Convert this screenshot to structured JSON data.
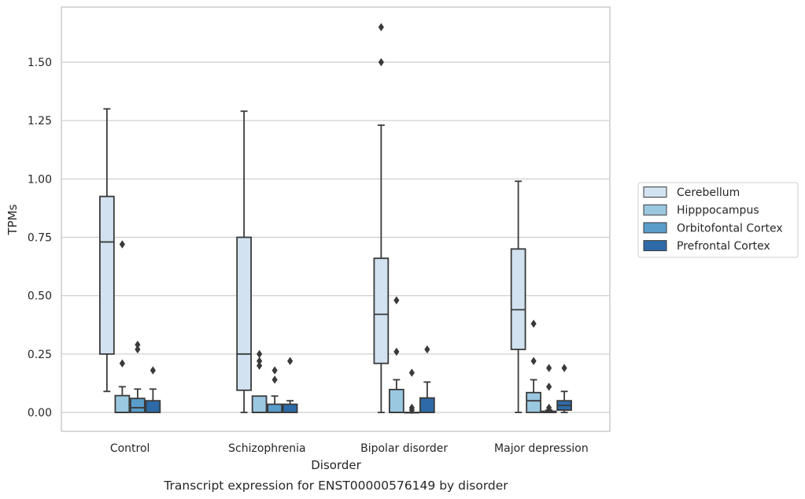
{
  "caption": "Transcript expression for ENST00000576149 by disorder",
  "chart_data": {
    "type": "box",
    "title": "",
    "xlabel": "Disorder",
    "ylabel": "TPMs",
    "ylim": [
      -0.08,
      1.74
    ],
    "yticks": [
      0.0,
      0.25,
      0.5,
      0.75,
      1.0,
      1.25,
      1.5
    ],
    "ytick_labels": [
      "0.00",
      "0.25",
      "0.50",
      "0.75",
      "1.00",
      "1.25",
      "1.50"
    ],
    "grid": "horizontal",
    "legend_position": "right",
    "categories": [
      "Control",
      "Schizophrenia",
      "Bipolar disorder",
      "Major depression"
    ],
    "series": [
      {
        "name": "Cerebellum",
        "color": "#d2e2f1",
        "boxes": [
          {
            "whislo": 0.09,
            "q1": 0.25,
            "med": 0.73,
            "q3": 0.925,
            "whishi": 1.3,
            "fliers": []
          },
          {
            "whislo": 0.0,
            "q1": 0.095,
            "med": 0.25,
            "q3": 0.75,
            "whishi": 1.29,
            "fliers": []
          },
          {
            "whislo": 0.0,
            "q1": 0.21,
            "med": 0.42,
            "q3": 0.66,
            "whishi": 1.23,
            "fliers": [
              1.5,
              1.65
            ]
          },
          {
            "whislo": 0.0,
            "q1": 0.27,
            "med": 0.44,
            "q3": 0.7,
            "whishi": 0.99,
            "fliers": []
          }
        ]
      },
      {
        "name": "Hipppocampus",
        "color": "#9ac8e0",
        "boxes": [
          {
            "whislo": 0.0,
            "q1": 0.0,
            "med": 0.0,
            "q3": 0.072,
            "whishi": 0.11,
            "fliers": [
              0.72,
              0.21
            ]
          },
          {
            "whislo": 0.0,
            "q1": 0.0,
            "med": 0.0,
            "q3": 0.07,
            "whishi": 0.07,
            "fliers": [
              0.25,
              0.22,
              0.2
            ]
          },
          {
            "whislo": 0.0,
            "q1": 0.0,
            "med": 0.0,
            "q3": 0.098,
            "whishi": 0.14,
            "fliers": [
              0.48,
              0.26
            ]
          },
          {
            "whislo": 0.0,
            "q1": 0.0,
            "med": 0.05,
            "q3": 0.085,
            "whishi": 0.14,
            "fliers": [
              0.38,
              0.22
            ]
          }
        ]
      },
      {
        "name": "Orbitofontal Cortex",
        "color": "#5a9dcb",
        "boxes": [
          {
            "whislo": 0.0,
            "q1": 0.0,
            "med": 0.02,
            "q3": 0.06,
            "whishi": 0.1,
            "fliers": [
              0.29,
              0.27
            ]
          },
          {
            "whislo": 0.0,
            "q1": 0.0,
            "med": 0.0,
            "q3": 0.035,
            "whishi": 0.07,
            "fliers": [
              0.18,
              0.14
            ]
          },
          {
            "whislo": 0.0,
            "q1": 0.0,
            "med": 0.0,
            "q3": 0.0,
            "whishi": 0.0,
            "fliers": [
              0.17,
              0.02,
              0.01
            ]
          },
          {
            "whislo": 0.0,
            "q1": 0.0,
            "med": 0.0,
            "q3": 0.005,
            "whishi": 0.01,
            "fliers": [
              0.19,
              0.11,
              0.02
            ]
          }
        ]
      },
      {
        "name": "Prefrontal Cortex",
        "color": "#2d6aa7",
        "boxes": [
          {
            "whislo": 0.0,
            "q1": 0.0,
            "med": 0.0,
            "q3": 0.05,
            "whishi": 0.1,
            "fliers": [
              0.18
            ]
          },
          {
            "whislo": 0.0,
            "q1": 0.0,
            "med": 0.0,
            "q3": 0.035,
            "whishi": 0.05,
            "fliers": [
              0.22
            ]
          },
          {
            "whislo": 0.0,
            "q1": 0.0,
            "med": 0.0,
            "q3": 0.062,
            "whishi": 0.13,
            "fliers": [
              0.27
            ]
          },
          {
            "whislo": 0.0,
            "q1": 0.01,
            "med": 0.03,
            "q3": 0.05,
            "whishi": 0.09,
            "fliers": [
              0.19
            ]
          }
        ]
      }
    ]
  }
}
